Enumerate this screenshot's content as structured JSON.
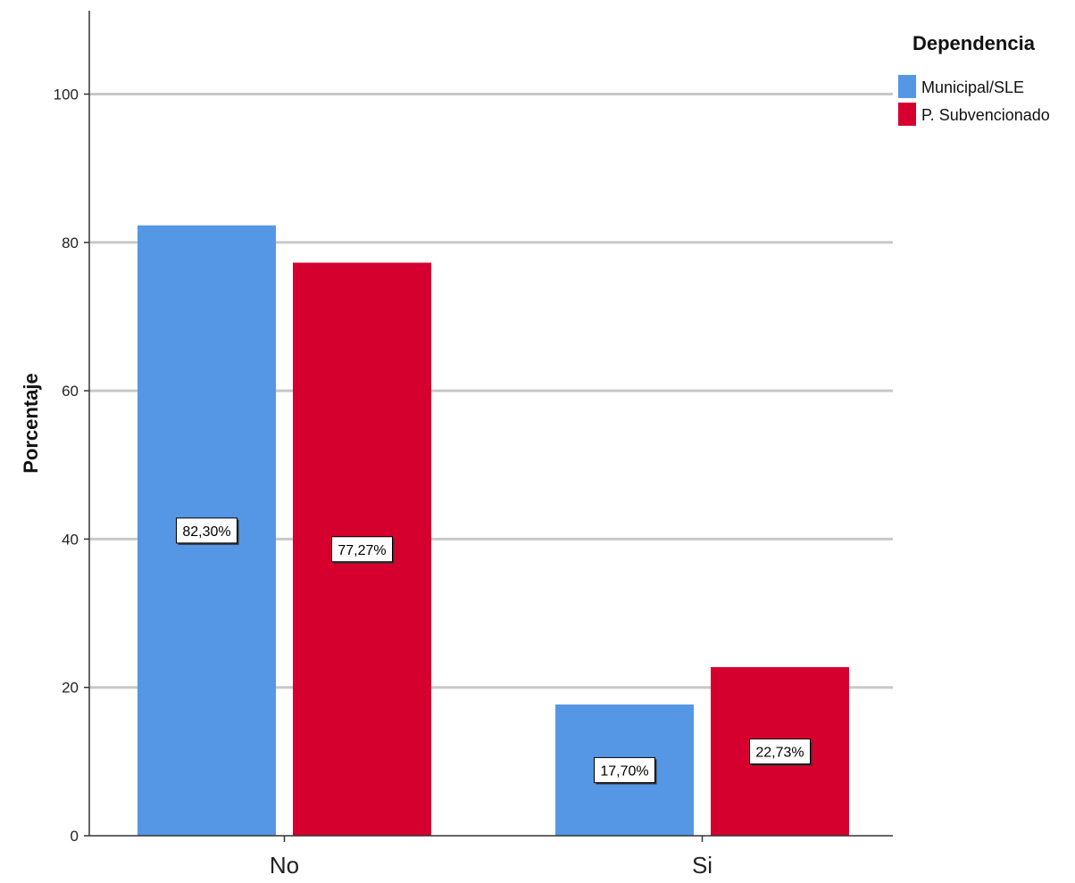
{
  "chart_data": {
    "type": "bar",
    "ylabel": "Porcentaje",
    "xlabel": "",
    "ylim": [
      0,
      110
    ],
    "yticks": [
      0,
      20,
      40,
      60,
      80,
      100
    ],
    "grid": true,
    "categories": [
      "No",
      "Si"
    ],
    "legend": {
      "title": "Dependencia",
      "placement": "top-right"
    },
    "series": [
      {
        "name": "Municipal/SLE",
        "color": "#5597e4",
        "values": [
          82.3,
          17.7
        ],
        "labels": [
          "82,30%",
          "17,70%"
        ]
      },
      {
        "name": "P. Subvencionado",
        "color": "#d6002f",
        "values": [
          77.27,
          22.73
        ],
        "labels": [
          "77,27%",
          "22,73%"
        ]
      }
    ]
  }
}
